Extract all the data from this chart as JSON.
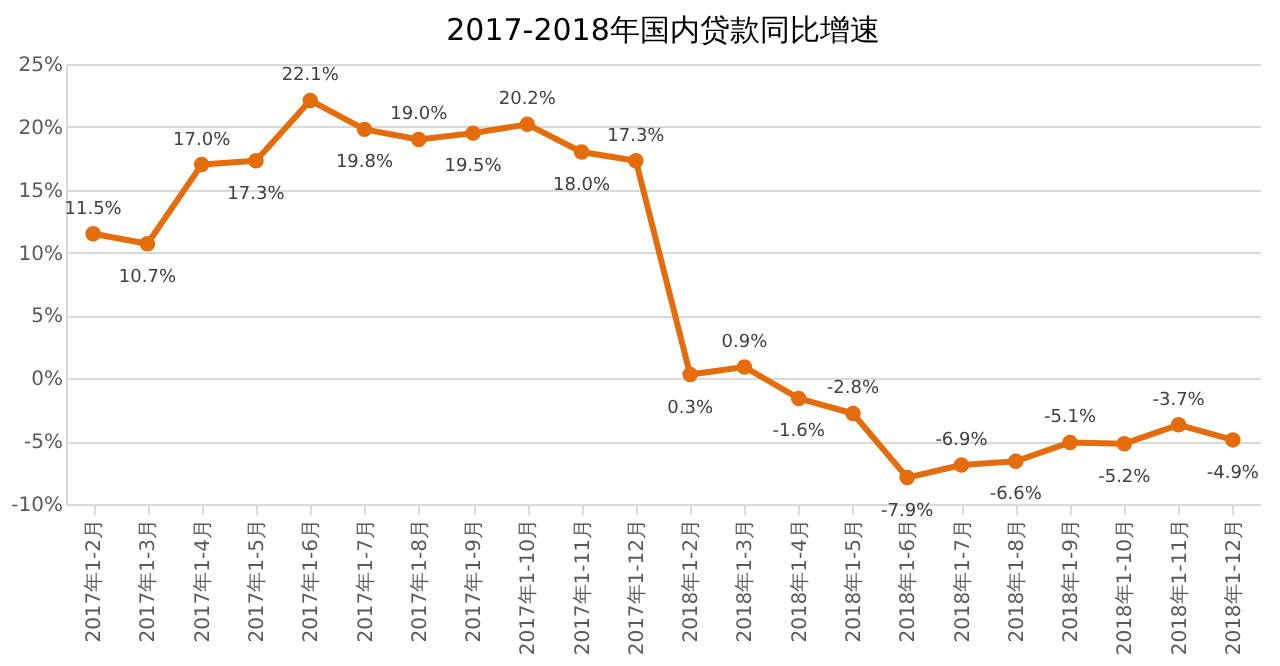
{
  "chart_data": {
    "type": "line",
    "title": "2017-2018年国内贷款同比增速",
    "categories": [
      "2017年1-2月",
      "2017年1-3月",
      "2017年1-4月",
      "2017年1-5月",
      "2017年1-6月",
      "2017年1-7月",
      "2017年1-8月",
      "2017年1-9月",
      "2017年1-10月",
      "2017年1-11月",
      "2017年1-12月",
      "2018年1-2月",
      "2018年1-3月",
      "2018年1-4月",
      "2018年1-5月",
      "2018年1-6月",
      "2018年1-7月",
      "2018年1-8月",
      "2018年1-9月",
      "2018年1-10月",
      "2018年1-11月",
      "2018年1-12月"
    ],
    "series": [
      {
        "color": "#e46c0a",
        "values": [
          11.5,
          10.7,
          17.0,
          17.3,
          22.1,
          19.8,
          19.0,
          19.5,
          20.2,
          18.0,
          17.3,
          0.3,
          0.9,
          -1.6,
          -2.8,
          -7.9,
          -6.9,
          -6.6,
          -5.1,
          -5.2,
          -3.7,
          -4.9
        ],
        "value_labels": [
          "11.5%",
          "10.7%",
          "17.0%",
          "17.3%",
          "22.1%",
          "19.8%",
          "19.0%",
          "19.5%",
          "20.2%",
          "18.0%",
          "17.3%",
          "0.3%",
          "0.9%",
          "-1.6%",
          "-2.8%",
          "-7.9%",
          "-6.9%",
          "-6.6%",
          "-5.1%",
          "-5.2%",
          "-3.7%",
          "-4.9%"
        ]
      }
    ],
    "ylim": [
      -10,
      25
    ],
    "yticks": [
      {
        "value": -10,
        "label": "-10%"
      },
      {
        "value": -5,
        "label": "-5%"
      },
      {
        "value": 0,
        "label": "0%"
      },
      {
        "value": 5,
        "label": "5%"
      },
      {
        "value": 10,
        "label": "10%"
      },
      {
        "value": 15,
        "label": "15%"
      },
      {
        "value": 20,
        "label": "20%"
      },
      {
        "value": 25,
        "label": "25%"
      }
    ],
    "grid": "y",
    "marker": "circle",
    "line_style": "solid"
  }
}
